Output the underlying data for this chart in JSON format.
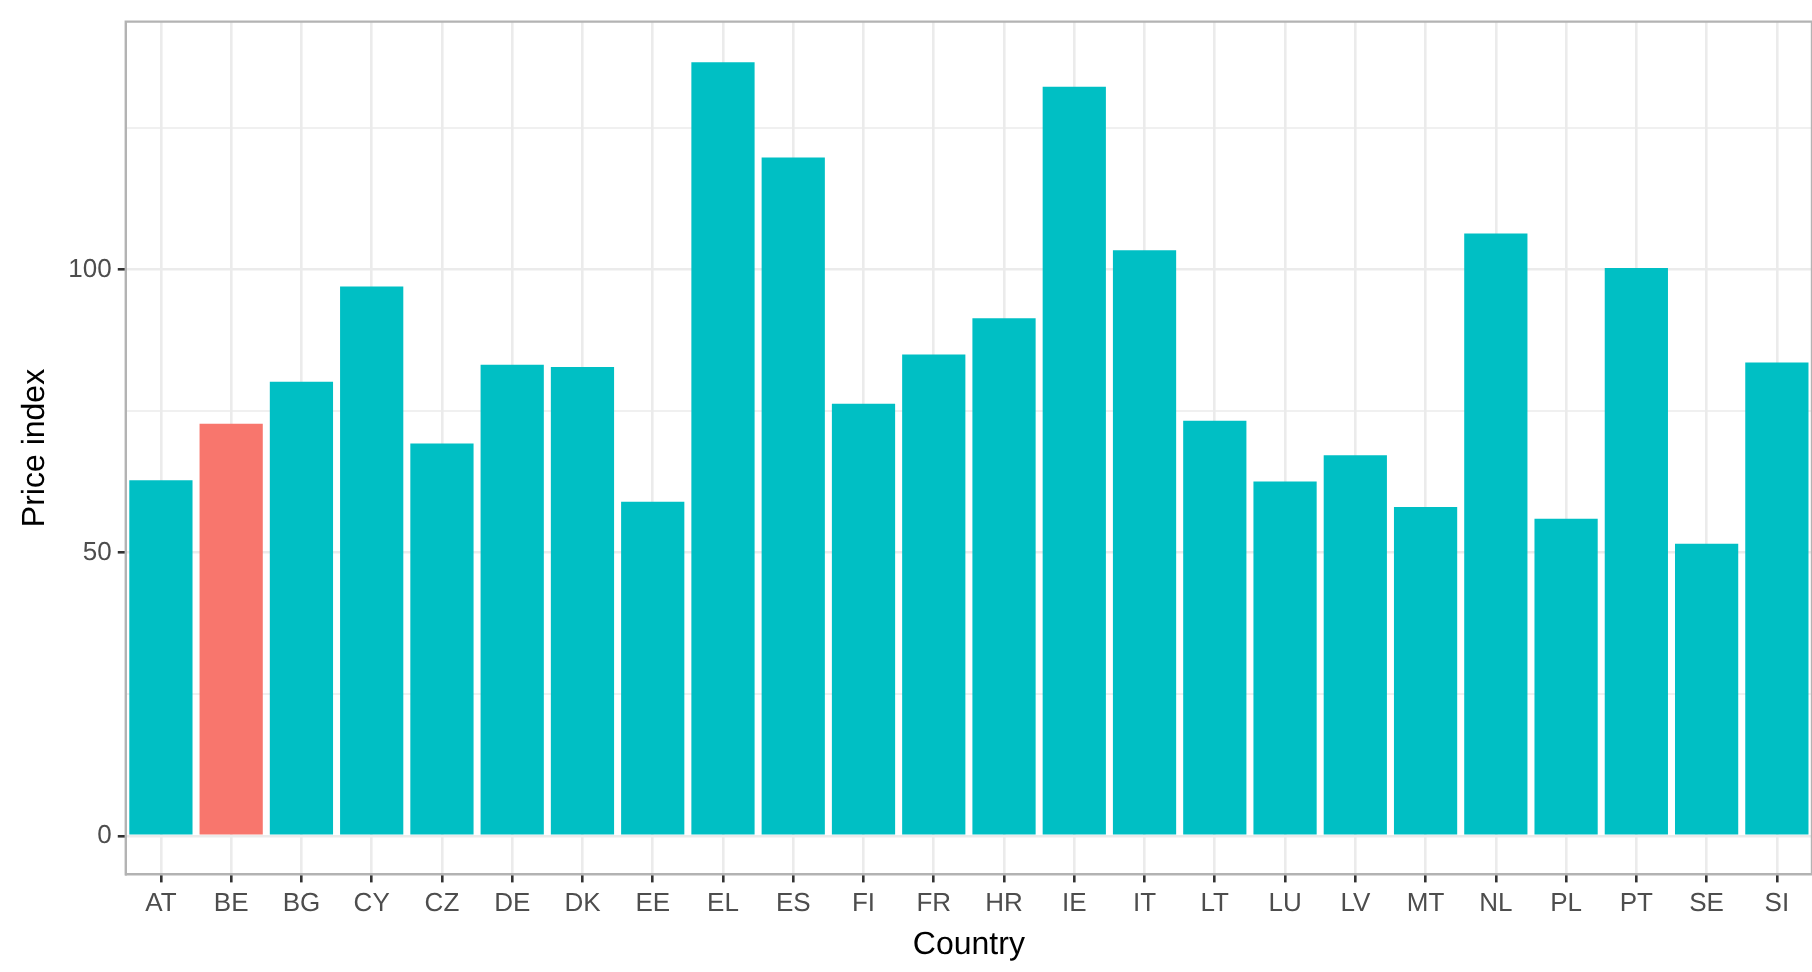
{
  "chart_data": {
    "type": "bar",
    "xlabel": "Country",
    "ylabel": "Price index",
    "categories": [
      "AT",
      "BE",
      "BG",
      "CY",
      "CZ",
      "DE",
      "DK",
      "EE",
      "EL",
      "ES",
      "FI",
      "FR",
      "HR",
      "IE",
      "IT",
      "LT",
      "LU",
      "LV",
      "MT",
      "NL",
      "PL",
      "PT",
      "SE",
      "SI"
    ],
    "values": [
      62.8,
      72.8,
      80.2,
      97.0,
      69.3,
      83.2,
      82.8,
      59.0,
      136.6,
      119.8,
      76.3,
      85.0,
      91.4,
      132.3,
      103.4,
      73.3,
      62.6,
      67.2,
      58.1,
      106.4,
      56.0,
      100.3,
      51.6,
      83.6
    ],
    "colors": [
      "#00bfc4",
      "#f8766d",
      "#00bfc4",
      "#00bfc4",
      "#00bfc4",
      "#00bfc4",
      "#00bfc4",
      "#00bfc4",
      "#00bfc4",
      "#00bfc4",
      "#00bfc4",
      "#00bfc4",
      "#00bfc4",
      "#00bfc4",
      "#00bfc4",
      "#00bfc4",
      "#00bfc4",
      "#00bfc4",
      "#00bfc4",
      "#00bfc4",
      "#00bfc4",
      "#00bfc4",
      "#00bfc4",
      "#00bfc4"
    ],
    "ylim": [
      -6.8,
      143.8
    ],
    "yticks": [
      0,
      {
        "value": 25,
        "label": null
      },
      50,
      {
        "value": 75,
        "label": null
      },
      100,
      {
        "value": 125,
        "label": null
      }
    ],
    "grid": true,
    "legend": false
  }
}
